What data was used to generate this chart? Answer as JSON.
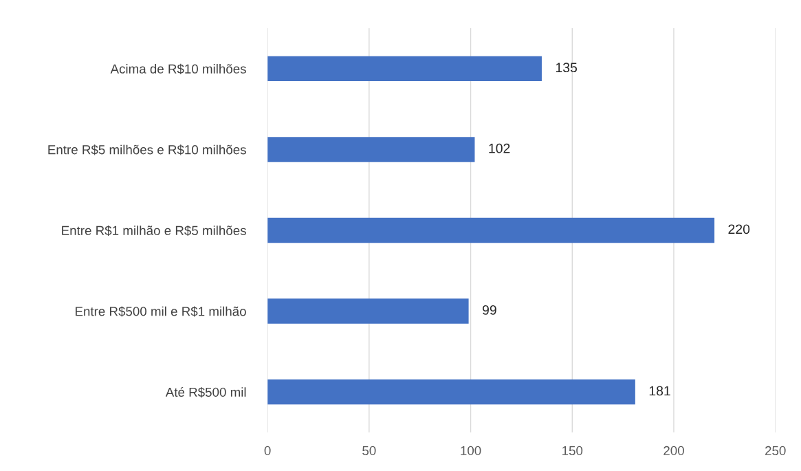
{
  "chart_data": {
    "type": "bar",
    "orientation": "horizontal",
    "categories": [
      "Acima de R$10 milhões",
      "Entre R$5 milhões e R$10 milhões",
      "Entre R$1 milhão e R$5 milhões",
      "Entre R$500 mil e R$1 milhão",
      "Até R$500 mil"
    ],
    "values": [
      135,
      102,
      220,
      99,
      181
    ],
    "color": "#4472c4",
    "xlim": [
      0,
      250
    ],
    "xticks": [
      0,
      50,
      100,
      150,
      200,
      250
    ],
    "grid": "x",
    "data_labels": true,
    "legend": false
  }
}
